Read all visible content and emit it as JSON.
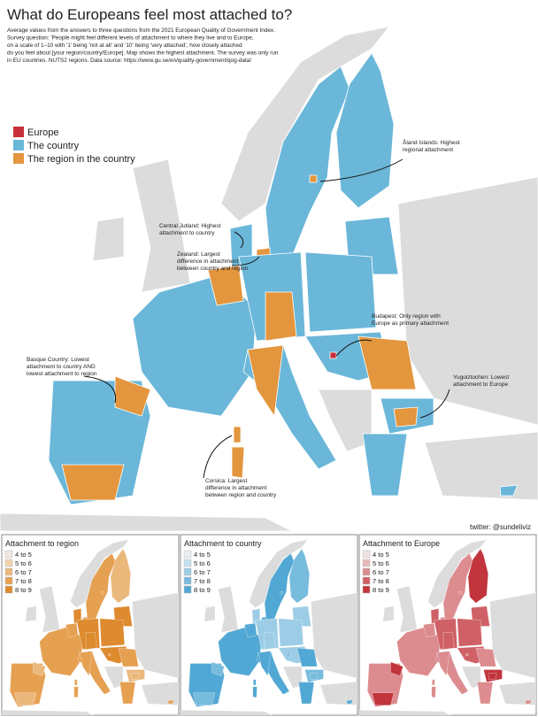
{
  "header": {
    "title": "What do Europeans feel most attached to?",
    "description": [
      "Average values from the answers to three questions from the 2021 European Quality of Government Index.",
      "Survey question: 'People might feel different levels of attachment to where they live and to Europe,",
      "on a scale of 1–10 with '1' being 'not at all' and '10' being 'very attached', how closely attached",
      "do you feel about [your region/country/Europe]. Map shows the highest attachment. The survey was only run",
      "in EU countries. NUTS2 regions. Data source: https://www.gu.se/en/quality-government/qog-data/"
    ]
  },
  "legend": [
    {
      "label": "Europe",
      "color": "#c8313b"
    },
    {
      "label": "The country",
      "color": "#6bb7d9"
    },
    {
      "label": "The region in the country",
      "color": "#e3963e"
    }
  ],
  "annotations": [
    {
      "lines": [
        "Åland Islands: Highest",
        "regional attachment"
      ]
    },
    {
      "lines": [
        "Central Jutland: Highest",
        "attachment to country"
      ]
    },
    {
      "lines": [
        "Zealand: Largest",
        "difference in attachment",
        "between country and region"
      ]
    },
    {
      "lines": [
        "Budapest: Only region with",
        "Europe as primary attachment"
      ]
    },
    {
      "lines": [
        "Basque Country: Lowest",
        "attachment to country AND",
        "lowest attachment to region"
      ]
    },
    {
      "lines": [
        "Yugoiztochen: Lowest",
        "attachment to Europe"
      ]
    },
    {
      "lines": [
        "Corsica: Largest",
        "difference in attachment",
        "between region and country"
      ]
    }
  ],
  "credit": "twitter: @sundeliviz",
  "panels": [
    {
      "title": "Attachment to region",
      "bins": [
        {
          "label": "4 to 5",
          "color": "#efe8e1"
        },
        {
          "label": "5 to 6",
          "color": "#f0d2ae"
        },
        {
          "label": "6 to 7",
          "color": "#ebb87c"
        },
        {
          "label": "7 to 8",
          "color": "#e5a052"
        },
        {
          "label": "8 to 9",
          "color": "#de8a2e"
        }
      ]
    },
    {
      "title": "Attachment to country",
      "bins": [
        {
          "label": "4 to 5",
          "color": "#e6eef2"
        },
        {
          "label": "5 to 6",
          "color": "#c4e0ee"
        },
        {
          "label": "6 to 7",
          "color": "#9dcde6"
        },
        {
          "label": "7 to 8",
          "color": "#77bbdd"
        },
        {
          "label": "8 to 9",
          "color": "#52a8d4"
        }
      ]
    },
    {
      "title": "Attachment to Europe",
      "bins": [
        {
          "label": "4 to 5",
          "color": "#f2e3e3"
        },
        {
          "label": "5 to 6",
          "color": "#e8b9ba"
        },
        {
          "label": "6 to 7",
          "color": "#dc8c8f"
        },
        {
          "label": "7 to 8",
          "color": "#cf6166"
        },
        {
          "label": "8 to 9",
          "color": "#c2353d"
        }
      ]
    }
  ]
}
